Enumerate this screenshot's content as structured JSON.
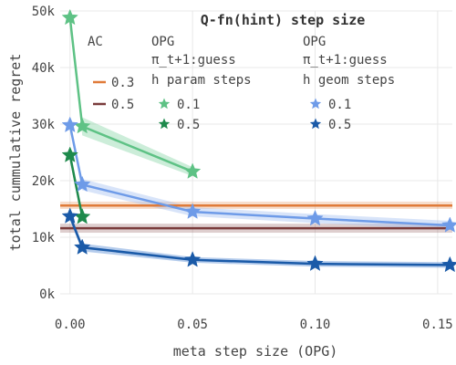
{
  "chart_data": {
    "type": "line",
    "title": "Q-fn(hint) step size",
    "xlabel": "meta step size (OPG)",
    "ylabel": "total cummulative regret",
    "xlim": [
      -0.004,
      0.156
    ],
    "ylim": [
      0,
      50000
    ],
    "x_ticks": [
      {
        "value": 0.0,
        "label": "0.00"
      },
      {
        "value": 0.05,
        "label": "0.05"
      },
      {
        "value": 0.1,
        "label": "0.10"
      },
      {
        "value": 0.15,
        "label": "0.15"
      }
    ],
    "y_ticks": [
      {
        "value": 0,
        "label": "0k"
      },
      {
        "value": 10000,
        "label": "10k"
      },
      {
        "value": 20000,
        "label": "20k"
      },
      {
        "value": 30000,
        "label": "30k"
      },
      {
        "value": 40000,
        "label": "40k"
      },
      {
        "value": 50000,
        "label": "50k"
      }
    ],
    "grid": true,
    "horizontal_lines": [
      {
        "group": "AC",
        "name": "0.3",
        "value": 15600,
        "band": [
          15000,
          16300
        ],
        "color": "#e07b39"
      },
      {
        "group": "AC",
        "name": "0.5",
        "value": 11600,
        "band": [
          10800,
          12400
        ],
        "color": "#7a3b3b"
      }
    ],
    "series": [
      {
        "group": "OPG π_t+1:guess h param steps",
        "name": "0.1",
        "color": "#5ec285",
        "band_color": "#8fd6aa",
        "x": [
          0.0,
          0.005,
          0.05
        ],
        "y": [
          48800,
          29600,
          21600
        ],
        "lower": [
          48000,
          28000,
          20800
        ],
        "upper": [
          49600,
          31200,
          22400
        ]
      },
      {
        "group": "OPG π_t+1:guess h param steps",
        "name": "0.5",
        "color": "#1e8a4c",
        "band_color": "#1e8a4c",
        "x": [
          0.0,
          0.005
        ],
        "y": [
          24500,
          13600
        ],
        "lower": [
          23500,
          12800
        ],
        "upper": [
          25500,
          14400
        ]
      },
      {
        "group": "OPG π_t+1:guess h geom steps",
        "name": "0.1",
        "color": "#6e9be8",
        "band_color": "#a9c4f2",
        "x": [
          0.0,
          0.005,
          0.05,
          0.1,
          0.155
        ],
        "y": [
          29800,
          19300,
          14500,
          13300,
          12100
        ],
        "lower": [
          29000,
          18300,
          13700,
          12500,
          11300
        ],
        "upper": [
          30600,
          20300,
          15300,
          14100,
          12900
        ]
      },
      {
        "group": "OPG π_t+1:guess h geom steps",
        "name": "0.5",
        "color": "#1a5aa8",
        "band_color": "#5a8fd4",
        "x": [
          0.0,
          0.005,
          0.05,
          0.1,
          0.155
        ],
        "y": [
          13700,
          8200,
          6000,
          5300,
          5100
        ],
        "lower": [
          13000,
          7500,
          5500,
          4800,
          4600
        ],
        "upper": [
          14400,
          8900,
          6500,
          5800,
          5600
        ]
      }
    ],
    "legend": {
      "placement": "top",
      "ac_header": "AC",
      "param_header": [
        "OPG",
        "π_t+1:guess",
        "h param steps"
      ],
      "geom_header": [
        "OPG",
        "π_t+1:guess",
        "h geom steps"
      ]
    }
  }
}
